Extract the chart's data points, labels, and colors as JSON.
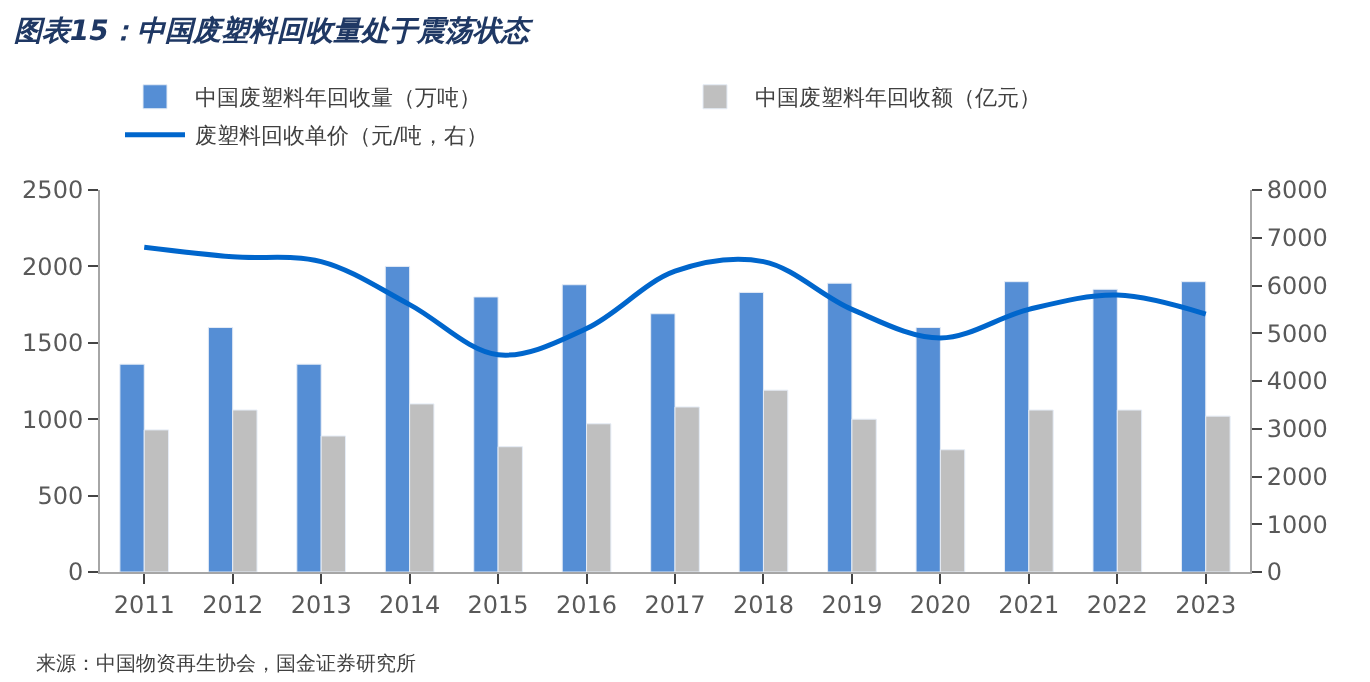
{
  "chart_data": {
    "type": "bar",
    "title": "图表15：中国废塑料回收量处于震荡状态",
    "categories": [
      "2011",
      "2012",
      "2013",
      "2014",
      "2015",
      "2016",
      "2017",
      "2018",
      "2019",
      "2020",
      "2021",
      "2022",
      "2023"
    ],
    "series": [
      {
        "name": "中国废塑料年回收量（万吨）",
        "color": "#558ed5",
        "values": [
          1360,
          1600,
          1360,
          2000,
          1800,
          1880,
          1690,
          1830,
          1890,
          1600,
          1900,
          1850,
          1900
        ]
      },
      {
        "name": "中国废塑料年回收额（亿元）",
        "color": "#bfbfbf",
        "values": [
          930,
          1060,
          890,
          1100,
          820,
          970,
          1080,
          1190,
          1000,
          800,
          1060,
          1060,
          1020
        ]
      },
      {
        "name": "废塑料回收单价（元/吨，右）",
        "type": "line",
        "axis": "y2",
        "color": "#0066cc",
        "values": [
          6800,
          6600,
          6500,
          5600,
          4550,
          5100,
          6300,
          6500,
          5500,
          4900,
          5500,
          5800,
          5400
        ]
      }
    ],
    "ylim": [
      0,
      2500
    ],
    "yticks": [
      0,
      500,
      1000,
      1500,
      2000,
      2500
    ],
    "y2lim": [
      0,
      8000
    ],
    "y2ticks": [
      0,
      1000,
      2000,
      3000,
      4000,
      5000,
      6000,
      7000,
      8000
    ],
    "legend": "top",
    "annotations": [
      "来源：中国物资再生协会，国金证券研究所"
    ]
  }
}
